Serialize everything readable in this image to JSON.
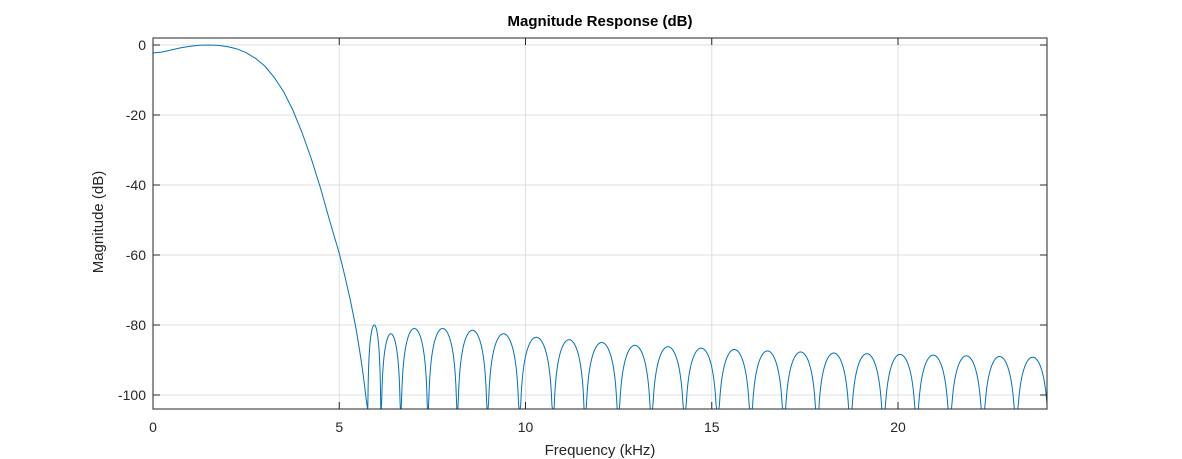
{
  "chart_data": {
    "type": "line",
    "title": "Magnitude Response (dB)",
    "xlabel": "Frequency (kHz)",
    "ylabel": "Magnitude (dB)",
    "xlim": [
      0,
      24
    ],
    "ylim": [
      -104,
      2
    ],
    "xticks": [
      0,
      5,
      10,
      15,
      20
    ],
    "yticks": [
      0,
      -20,
      -40,
      -60,
      -80,
      -100
    ],
    "grid": true,
    "line_color": "#0072BD",
    "passband": {
      "x": [
        0,
        0.25,
        0.5,
        0.75,
        1.0,
        1.25,
        1.5,
        1.75,
        2.0,
        2.25,
        2.5,
        2.75,
        3.0,
        3.25,
        3.5,
        3.75,
        4.0,
        4.25,
        4.5,
        4.75,
        5.0,
        5.15,
        5.3,
        5.45,
        5.55,
        5.62,
        5.67,
        5.72,
        5.76
      ],
      "y": [
        -2.3,
        -2.0,
        -1.4,
        -0.8,
        -0.35,
        -0.08,
        0.0,
        -0.1,
        -0.45,
        -1.1,
        -2.2,
        -3.8,
        -6.0,
        -9.2,
        -13.2,
        -18.5,
        -25.0,
        -32.5,
        -41.0,
        -50.5,
        -59.5,
        -66.0,
        -73.0,
        -81.0,
        -87.5,
        -92.5,
        -96.5,
        -101.0,
        -104.0
      ]
    },
    "stopband_nulls_khz": [
      5.76,
      6.12,
      6.65,
      7.38,
      8.17,
      8.98,
      9.84,
      10.74,
      11.6,
      12.49,
      13.38,
      14.27,
      15.16,
      16.05,
      16.94,
      17.83,
      18.72,
      19.61,
      20.5,
      21.39,
      22.28,
      23.17
    ],
    "stopband_peaks_db": [
      -80.0,
      -82.5,
      -81.0,
      -81.0,
      -81.5,
      -82.5,
      -83.5,
      -84.2,
      -85.0,
      -85.8,
      -86.2,
      -86.6,
      -87.0,
      -87.4,
      -87.7,
      -88.0,
      -88.2,
      -88.4,
      -88.6,
      -88.8,
      -89.0,
      -89.2
    ]
  }
}
